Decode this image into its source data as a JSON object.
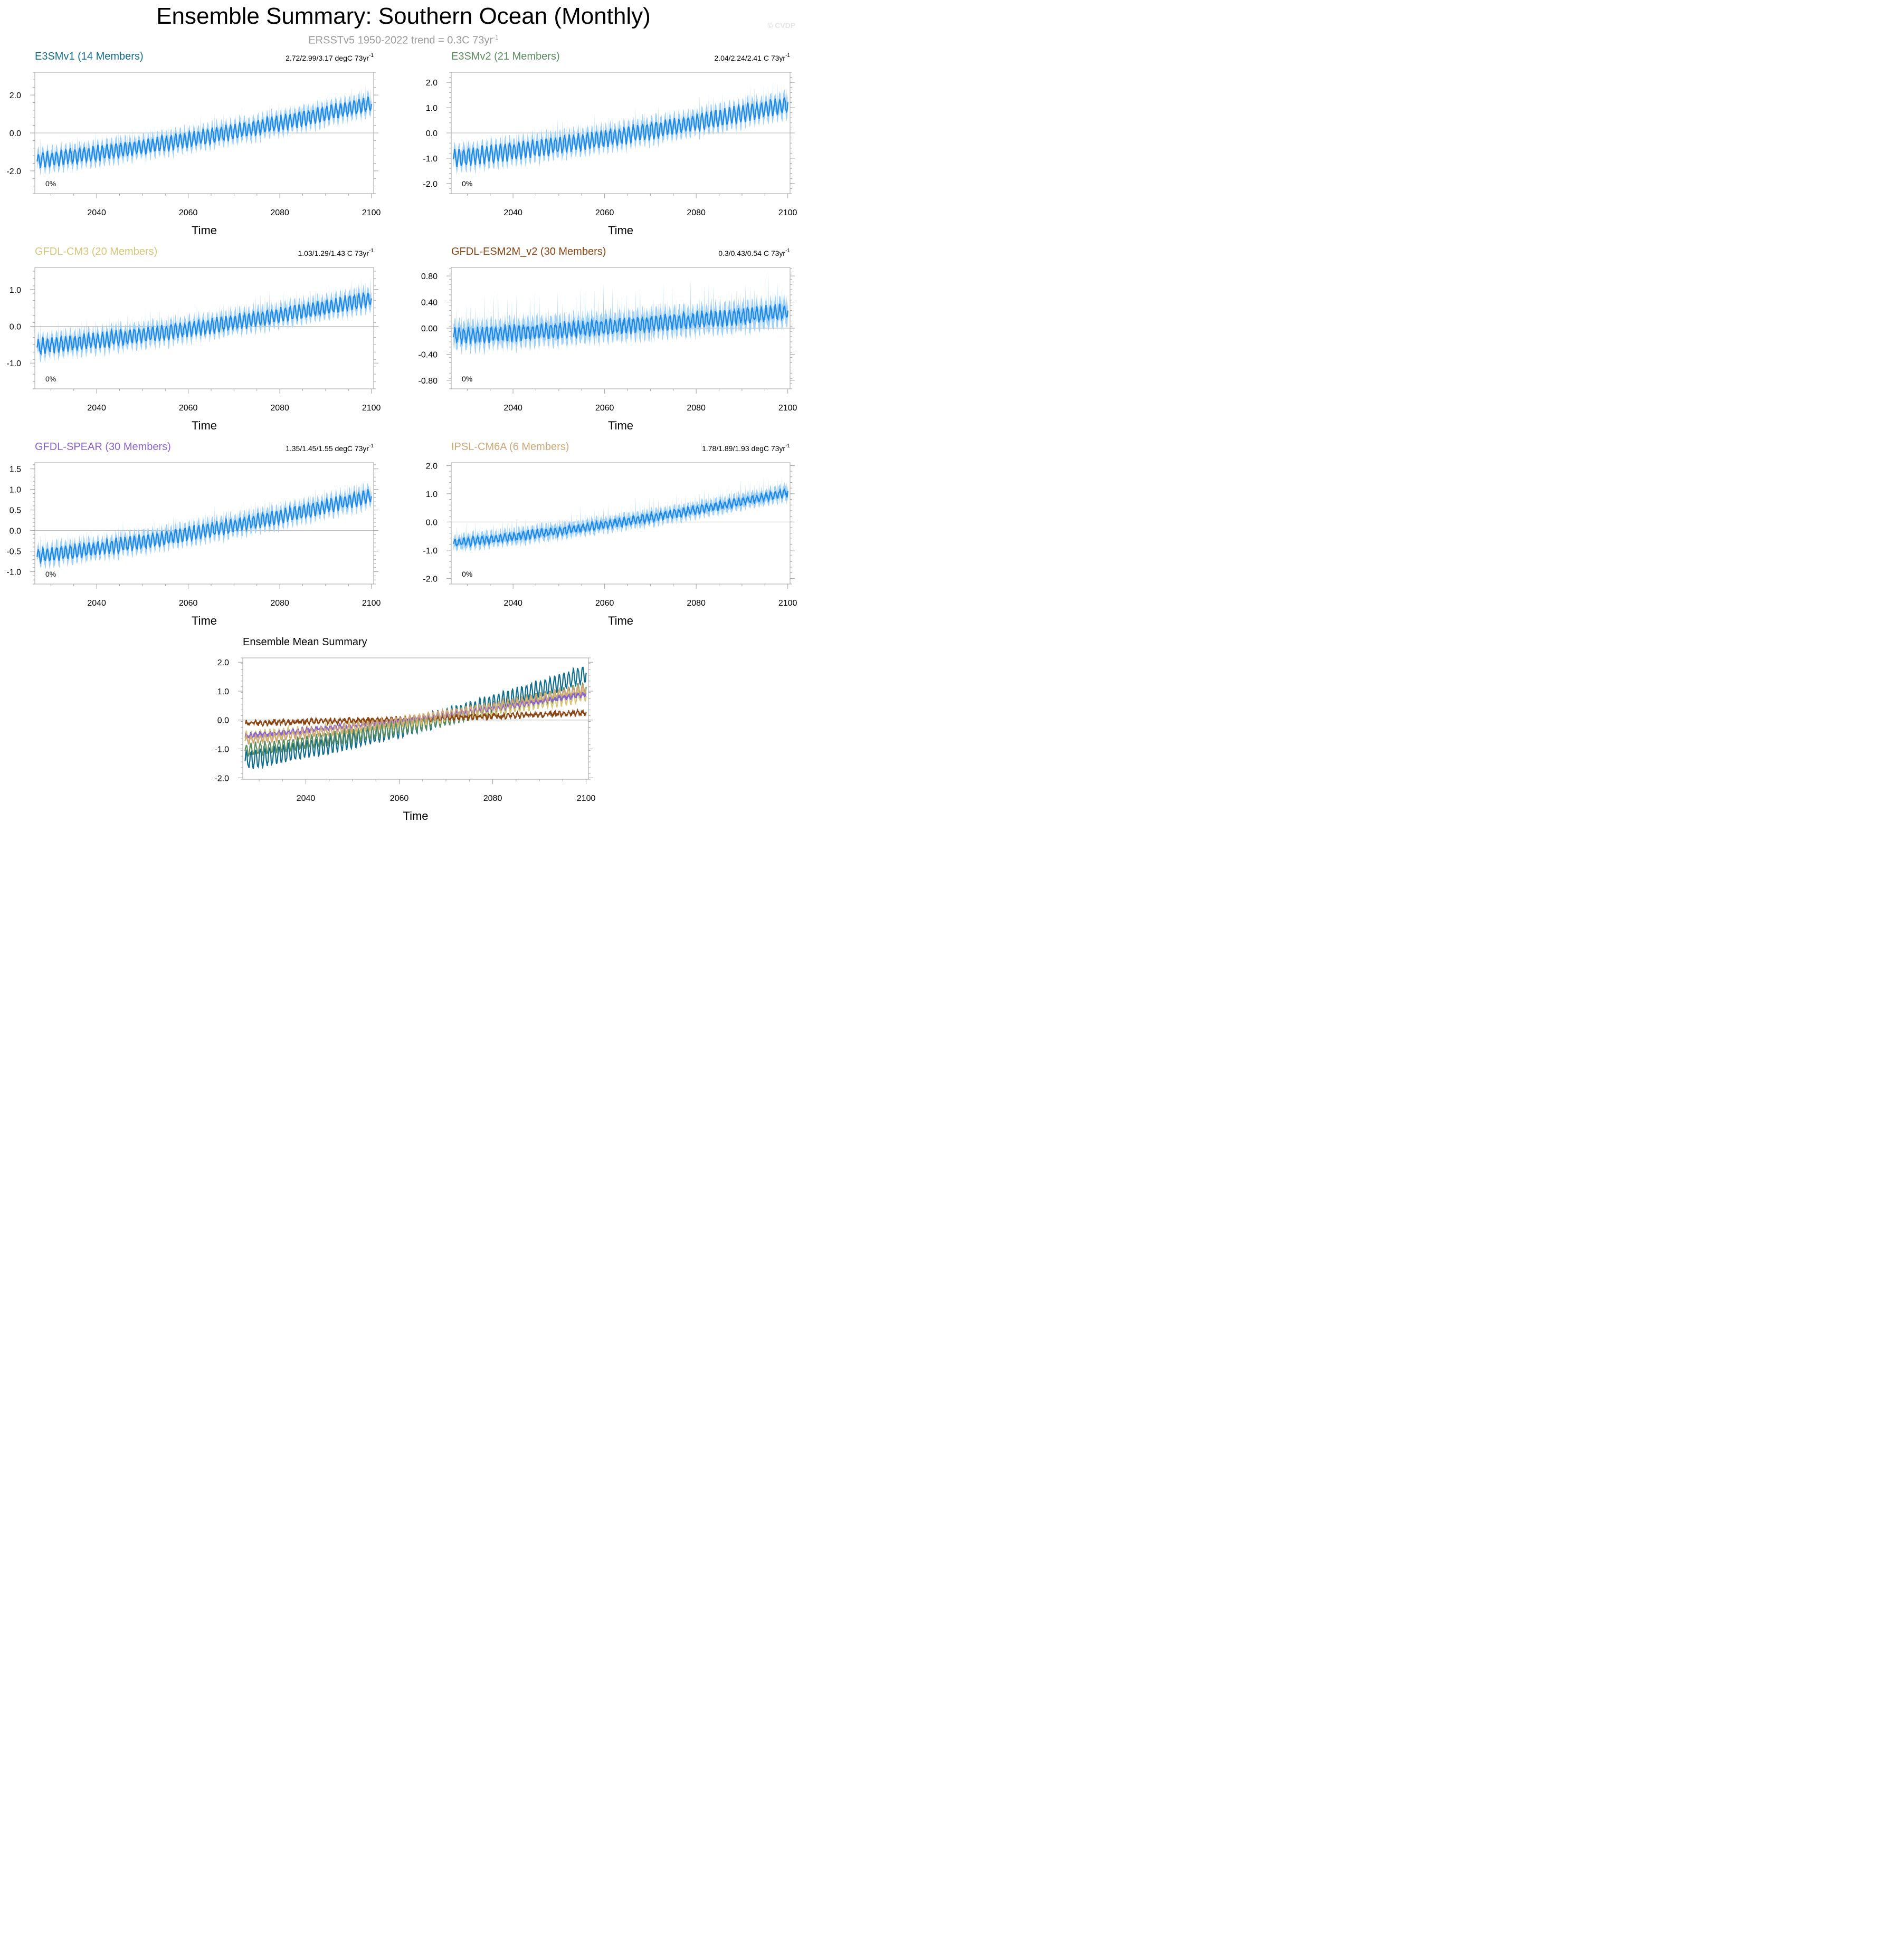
{
  "page": {
    "title": "Ensemble Summary: Southern Ocean (Monthly)",
    "subtitle": "ERSSTv5 1950-2022 trend = 0.3C 73yr",
    "subtitle_exp": "-1",
    "watermark": "© CVDP"
  },
  "colors": {
    "spread_fill": "#9fd0f7",
    "mean_line": "#1e88e5",
    "zero_line": "#b5b5b5",
    "frame": "#a0a0a0"
  },
  "chart_data": [
    {
      "type": "area",
      "title": "E3SMv1 (14 Members)",
      "title_color": "#116d8c",
      "trend_text": "2.72/2.99/3.17 degC 73yr",
      "trend_exp": "-1",
      "pct_label": "0%",
      "xlabel": "Time",
      "xlim": [
        2026.5,
        2100.5
      ],
      "ylim": [
        -3.2,
        3.2
      ],
      "xticks": [
        2040,
        2060,
        2080,
        2100
      ],
      "yticks": [
        -2.0,
        0.0,
        2.0
      ],
      "ytick_labels": [
        "-2.0",
        "0.0",
        "2.0"
      ],
      "series": {
        "start": -1.45,
        "end": 1.55,
        "season_amp": 0.35,
        "spread": 0.55,
        "spike": 0.75,
        "seed": 11
      }
    },
    {
      "type": "area",
      "title": "E3SMv2 (21 Members)",
      "title_color": "#5b8c60",
      "trend_text": "2.04/2.24/2.41 C 73yr",
      "trend_exp": "-1",
      "pct_label": "0%",
      "xlabel": "Time",
      "xlim": [
        2026.5,
        2100.5
      ],
      "ylim": [
        -2.4,
        2.4
      ],
      "xticks": [
        2040,
        2060,
        2080,
        2100
      ],
      "yticks": [
        -2.0,
        -1.0,
        0.0,
        1.0,
        2.0
      ],
      "ytick_labels": [
        "-2.0",
        "-1.0",
        "0.0",
        "1.0",
        "2.0"
      ],
      "series": {
        "start": -1.0,
        "end": 1.15,
        "season_amp": 0.3,
        "spread": 0.45,
        "spike": 0.7,
        "seed": 23
      }
    },
    {
      "type": "area",
      "title": "GFDL-CM3 (20 Members)",
      "title_color": "#d6c678",
      "trend_text": "1.03/1.29/1.43 C 73yr",
      "trend_exp": "-1",
      "pct_label": "0%",
      "xlabel": "Time",
      "xlim": [
        2026.5,
        2100.5
      ],
      "ylim": [
        -1.7,
        1.6
      ],
      "xticks": [
        2040,
        2060,
        2080,
        2100
      ],
      "yticks": [
        -1.0,
        0.0,
        1.0
      ],
      "ytick_labels": [
        "-1.0",
        "0.0",
        "1.0"
      ],
      "series": {
        "start": -0.55,
        "end": 0.75,
        "season_amp": 0.18,
        "spread": 0.3,
        "spike": 0.45,
        "seed": 37
      }
    },
    {
      "type": "area",
      "title": "GFDL-ESM2M_v2 (30 Members)",
      "title_color": "#8b4513",
      "trend_text": "0.3/0.43/0.54 C 73yr",
      "trend_exp": "-1",
      "pct_label": "0%",
      "xlabel": "Time",
      "xlim": [
        2026.5,
        2100.5
      ],
      "ylim": [
        -0.93,
        0.93
      ],
      "xticks": [
        2040,
        2060,
        2080,
        2100
      ],
      "yticks": [
        -0.8,
        -0.4,
        0.0,
        0.4,
        0.8
      ],
      "ytick_labels": [
        "-0.80",
        "-0.40",
        "0.00",
        "0.40",
        "0.80"
      ],
      "series": {
        "start": -0.12,
        "end": 0.25,
        "season_amp": 0.1,
        "spread": 0.22,
        "spike": 0.38,
        "seed": 41
      }
    },
    {
      "type": "area",
      "title": "GFDL-SPEAR (30 Members)",
      "title_color": "#8a63d2",
      "trend_text": "1.35/1.45/1.55 degC 73yr",
      "trend_exp": "-1",
      "pct_label": "0%",
      "xlabel": "Time",
      "xlim": [
        2026.5,
        2100.5
      ],
      "ylim": [
        -1.3,
        1.65
      ],
      "xticks": [
        2040,
        2060,
        2080,
        2100
      ],
      "yticks": [
        -1.0,
        -0.5,
        0.0,
        0.5,
        1.0,
        1.5
      ],
      "ytick_labels": [
        "-1.0",
        "-0.5",
        "0.0",
        "0.5",
        "1.0",
        "1.5"
      ],
      "series": {
        "start": -0.62,
        "end": 0.85,
        "season_amp": 0.15,
        "spread": 0.25,
        "spike": 0.35,
        "seed": 53
      }
    },
    {
      "type": "area",
      "title": "IPSL-CM6A (6 Members)",
      "title_color": "#cfa878",
      "trend_text": "1.78/1.89/1.93 degC 73yr",
      "trend_exp": "-1",
      "pct_label": "0%",
      "xlabel": "Time",
      "xlim": [
        2026.5,
        2100.5
      ],
      "ylim": [
        -2.2,
        2.1
      ],
      "xticks": [
        2040,
        2060,
        2080,
        2100
      ],
      "yticks": [
        -2.0,
        -1.0,
        0.0,
        1.0,
        2.0
      ],
      "ytick_labels": [
        "-2.0",
        "-1.0",
        "0.0",
        "1.0",
        "2.0"
      ],
      "series": {
        "start": -0.75,
        "end": 1.05,
        "season_amp": 0.12,
        "spread": 0.3,
        "spike": 0.45,
        "seed": 67
      }
    },
    {
      "type": "line",
      "title": "Ensemble Mean Summary",
      "xlabel": "Time",
      "xlim": [
        2026.5,
        2100.5
      ],
      "ylim": [
        -2.05,
        2.15
      ],
      "xticks": [
        2040,
        2060,
        2080,
        2100
      ],
      "yticks": [
        -2.0,
        -1.0,
        0.0,
        1.0,
        2.0
      ],
      "ytick_labels": [
        "-2.0",
        "-1.0",
        "0.0",
        "1.0",
        "2.0"
      ],
      "series": [
        {
          "name": "E3SMv1",
          "color": "#116d8c",
          "start": -1.4,
          "end": 1.6,
          "season_amp": 0.28,
          "seed": 11
        },
        {
          "name": "E3SMv2",
          "color": "#5b8c60",
          "start": -1.05,
          "end": 1.1,
          "season_amp": 0.2,
          "seed": 23
        },
        {
          "name": "GFDL-CM3",
          "color": "#d6c678",
          "start": -0.6,
          "end": 0.85,
          "season_amp": 0.18,
          "seed": 37
        },
        {
          "name": "GFDL-ESM2M_v2",
          "color": "#8b4513",
          "start": -0.1,
          "end": 0.25,
          "season_amp": 0.06,
          "seed": 41
        },
        {
          "name": "GFDL-SPEAR",
          "color": "#8a63d2",
          "start": -0.55,
          "end": 0.9,
          "season_amp": 0.05,
          "seed": 53
        },
        {
          "name": "IPSL-CM6A",
          "color": "#cfa878",
          "start": -0.7,
          "end": 1.1,
          "season_amp": 0.12,
          "seed": 67
        }
      ]
    }
  ]
}
